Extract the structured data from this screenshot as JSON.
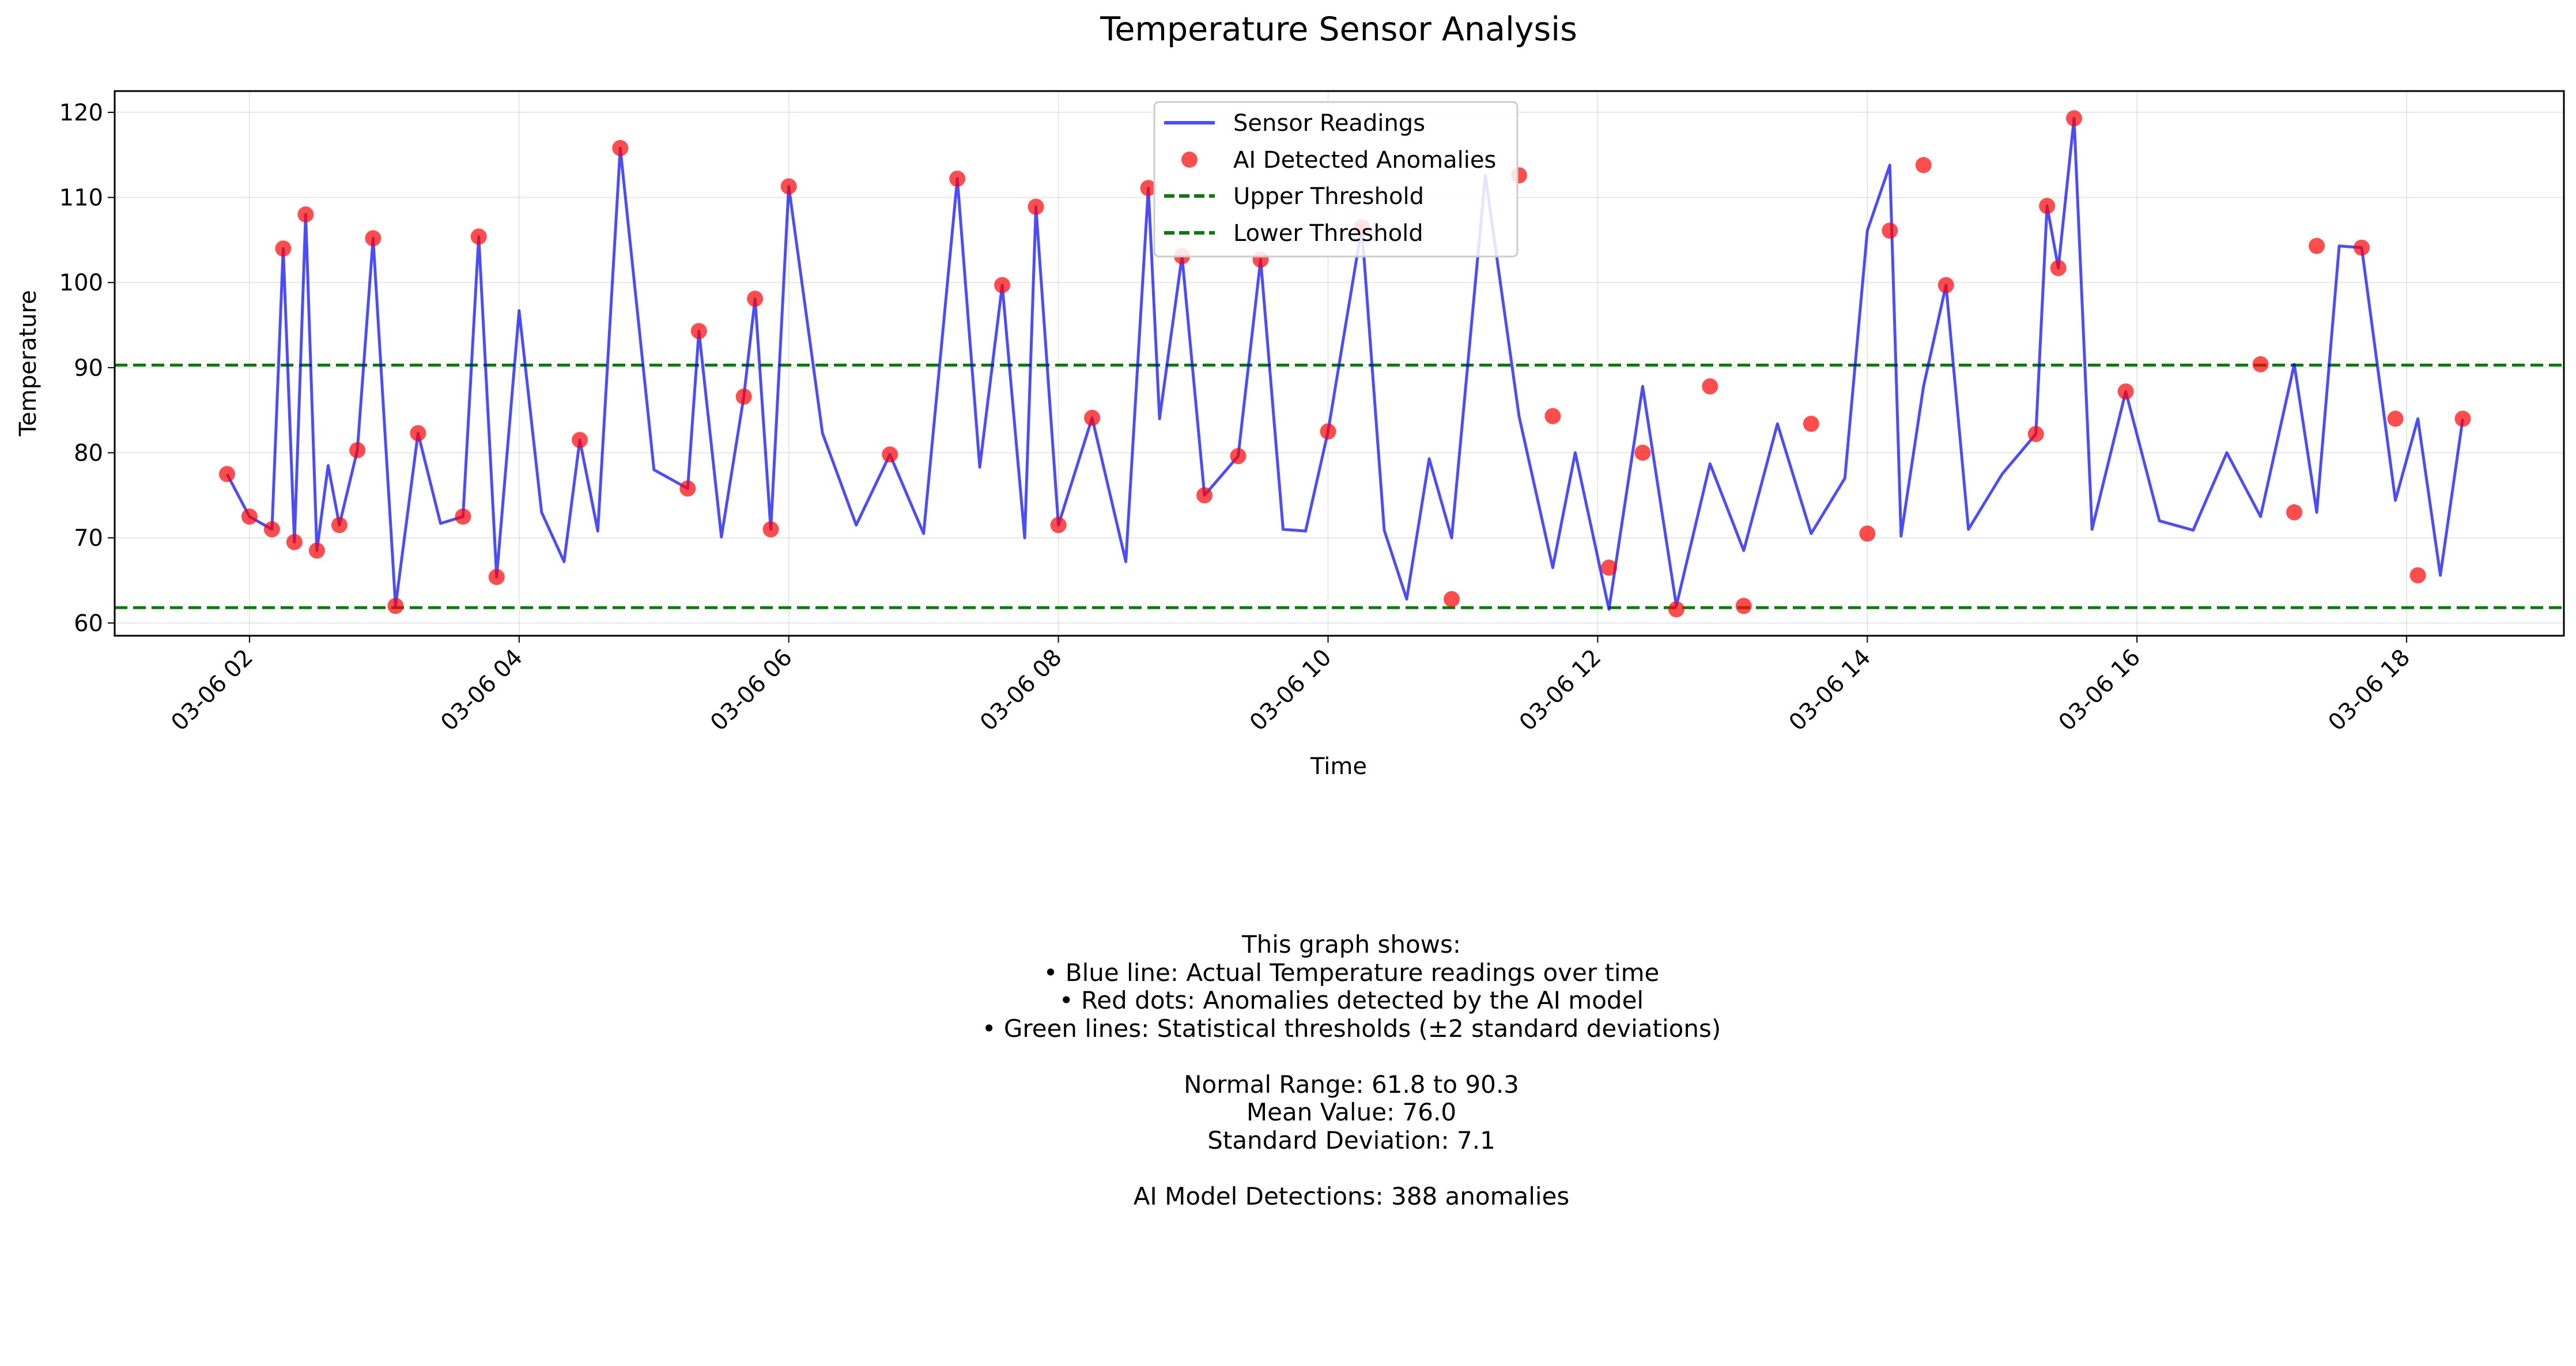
{
  "chart_data": {
    "type": "line",
    "title": "Temperature Sensor Analysis",
    "xlabel": "Time",
    "ylabel": "Temperature",
    "x_range": [
      "03-06 01:00",
      "03-06 19:10"
    ],
    "ylim": [
      58.5,
      122.5
    ],
    "x_ticks": [
      "03-06 02",
      "03-06 04",
      "03-06 06",
      "03-06 08",
      "03-06 10",
      "03-06 12",
      "03-06 14",
      "03-06 16",
      "03-06 18"
    ],
    "y_ticks": [
      60,
      70,
      80,
      90,
      100,
      110,
      120
    ],
    "grid": true,
    "legend_position": "top-center",
    "legend": [
      "Sensor Readings",
      "AI Detected Anomalies",
      "Upper Threshold",
      "Lower Threshold"
    ],
    "colors": {
      "line": "#0000ff",
      "anomaly": "#ff0000",
      "threshold": "#008000"
    },
    "thresholds": {
      "upper": 90.3,
      "lower": 61.8
    },
    "series": [
      {
        "name": "Sensor Readings",
        "x": [
          "03-06 01:50",
          "03-06 02:00",
          "03-06 02:10",
          "03-06 02:15",
          "03-06 02:20",
          "03-06 02:25",
          "03-06 02:30",
          "03-06 02:35",
          "03-06 02:40",
          "03-06 02:48",
          "03-06 02:55",
          "03-06 03:05",
          "03-06 03:15",
          "03-06 03:25",
          "03-06 03:35",
          "03-06 03:42",
          "03-06 03:50",
          "03-06 04:00",
          "03-06 04:10",
          "03-06 04:20",
          "03-06 04:27",
          "03-06 04:35",
          "03-06 04:45",
          "03-06 05:00",
          "03-06 05:15",
          "03-06 05:20",
          "03-06 05:30",
          "03-06 05:40",
          "03-06 05:45",
          "03-06 05:52",
          "03-06 06:00",
          "03-06 06:15",
          "03-06 06:30",
          "03-06 06:45",
          "03-06 07:00",
          "03-06 07:15",
          "03-06 07:25",
          "03-06 07:35",
          "03-06 07:45",
          "03-06 07:50",
          "03-06 08:00",
          "03-06 08:15",
          "03-06 08:30",
          "03-06 08:40",
          "03-06 08:45",
          "03-06 08:55",
          "03-06 09:05",
          "03-06 09:20",
          "03-06 09:30",
          "03-06 09:40",
          "03-06 09:50",
          "03-06 10:00",
          "03-06 10:15",
          "03-06 10:25",
          "03-06 10:35",
          "03-06 10:45",
          "03-06 10:55",
          "03-06 11:10",
          "03-06 11:25",
          "03-06 11:40",
          "03-06 11:50",
          "03-06 12:05",
          "03-06 12:20",
          "03-06 12:35",
          "03-06 12:50",
          "03-06 13:05",
          "03-06 13:20",
          "03-06 13:35",
          "03-06 13:50",
          "03-06 14:00",
          "03-06 14:10",
          "03-06 14:15",
          "03-06 14:25",
          "03-06 14:35",
          "03-06 14:45",
          "03-06 15:00",
          "03-06 15:15",
          "03-06 15:20",
          "03-06 15:25",
          "03-06 15:32",
          "03-06 15:40",
          "03-06 15:55",
          "03-06 16:10",
          "03-06 16:25",
          "03-06 16:40",
          "03-06 16:55",
          "03-06 17:10",
          "03-06 17:20",
          "03-06 17:30",
          "03-06 17:40",
          "03-06 17:55",
          "03-06 18:05",
          "03-06 18:15",
          "03-06 18:25"
        ],
        "y": [
          77.5,
          72.5,
          71,
          104,
          69.5,
          108,
          68.5,
          78.5,
          71.5,
          80.3,
          105.2,
          62,
          82.3,
          71.7,
          72.5,
          105.4,
          65.4,
          96.7,
          73,
          67.2,
          81.5,
          70.8,
          115.8,
          78,
          75.8,
          94.3,
          70.1,
          86.6,
          98.1,
          71,
          111.3,
          82.3,
          71.5,
          79.8,
          70.5,
          112.2,
          78.3,
          99.7,
          70,
          108.9,
          71.5,
          84.1,
          67.2,
          111.1,
          84,
          103.1,
          75,
          79.6,
          102.7,
          71,
          70.8,
          82.5,
          106.5,
          70.9,
          62.8,
          79.3,
          70,
          112.6,
          84.3,
          66.5,
          80,
          61.6,
          87.8,
          62,
          78.7,
          68.5,
          83.4,
          70.5,
          77,
          106.1,
          113.8,
          70.2,
          87.8,
          99.7,
          71,
          77.5,
          82.2,
          109,
          101.7,
          119.3,
          71,
          87.2,
          72,
          70.9,
          80,
          72.5,
          90.4,
          73,
          104.3,
          104.1,
          74.4,
          84,
          65.6,
          84
        ]
      },
      {
        "name": "AI Detected Anomalies",
        "x": [
          "03-06 01:50",
          "03-06 02:00",
          "03-06 02:10",
          "03-06 02:15",
          "03-06 02:20",
          "03-06 02:25",
          "03-06 02:30",
          "03-06 02:40",
          "03-06 02:48",
          "03-06 02:55",
          "03-06 03:05",
          "03-06 03:15",
          "03-06 03:35",
          "03-06 03:42",
          "03-06 03:50",
          "03-06 04:27",
          "03-06 04:45",
          "03-06 05:15",
          "03-06 05:20",
          "03-06 05:40",
          "03-06 05:45",
          "03-06 05:52",
          "03-06 06:00",
          "03-06 06:45",
          "03-06 07:15",
          "03-06 07:35",
          "03-06 07:50",
          "03-06 08:00",
          "03-06 08:15",
          "03-06 08:40",
          "03-06 08:55",
          "03-06 09:05",
          "03-06 09:20",
          "03-06 09:30",
          "03-06 10:00",
          "03-06 10:15",
          "03-06 10:55",
          "03-06 11:25",
          "03-06 11:40",
          "03-06 12:05",
          "03-06 12:20",
          "03-06 12:35",
          "03-06 12:50",
          "03-06 13:05",
          "03-06 13:35",
          "03-06 14:00",
          "03-06 14:10",
          "03-06 14:25",
          "03-06 14:35",
          "03-06 15:15",
          "03-06 15:20",
          "03-06 15:25",
          "03-06 15:32",
          "03-06 15:55",
          "03-06 16:55",
          "03-06 17:10",
          "03-06 17:20",
          "03-06 17:40",
          "03-06 17:55",
          "03-06 18:05",
          "03-06 18:25"
        ],
        "y": [
          77.5,
          72.5,
          71,
          104,
          69.5,
          108,
          68.5,
          71.5,
          80.3,
          105.2,
          62,
          82.3,
          72.5,
          105.4,
          65.4,
          81.5,
          115.8,
          75.8,
          94.3,
          86.6,
          98.1,
          71,
          111.3,
          79.8,
          112.2,
          99.7,
          108.9,
          71.5,
          84.1,
          111.1,
          103.1,
          75,
          79.6,
          102.7,
          82.5,
          106.5,
          62.8,
          112.6,
          84.3,
          66.5,
          80,
          61.6,
          87.8,
          62,
          83.4,
          70.5,
          106.1,
          113.8,
          99.7,
          82.2,
          109,
          101.7,
          119.3,
          87.2,
          90.4,
          73,
          104.3,
          104.1,
          84,
          65.6,
          84
        ]
      }
    ]
  },
  "info": {
    "heading": "This graph shows:",
    "bullet_1": "• Blue line: Actual Temperature readings over time",
    "bullet_2": "• Red dots: Anomalies detected by the AI model",
    "bullet_3": "• Green lines: Statistical thresholds (±2 standard deviations)",
    "normal_range": "Normal Range: 61.8 to 90.3",
    "mean_value": "Mean Value: 76.0",
    "std_dev": "Standard Deviation: 7.1",
    "detections": "AI Model Detections: 388 anomalies"
  }
}
